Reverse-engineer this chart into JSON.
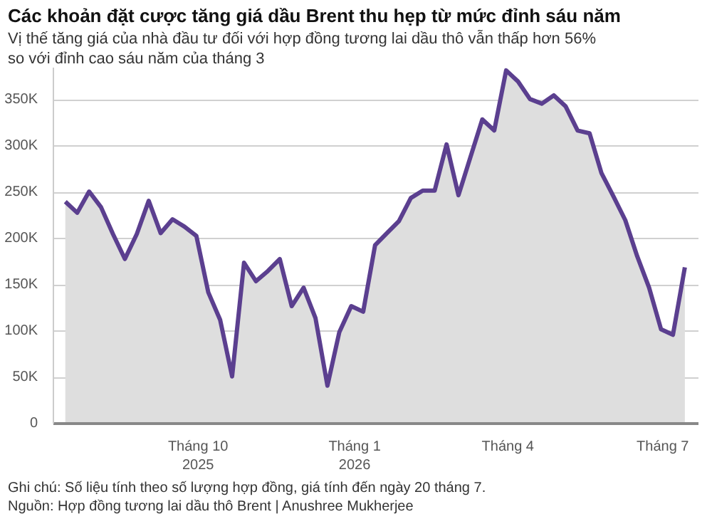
{
  "chart_data": {
    "type": "area",
    "title": "Các khoản đặt cược tăng giá dầu Brent thu hẹp từ mức đỉnh sáu năm",
    "subtitle": "Vị thế tăng giá của nhà đầu tư đối với hợp đồng tương lai dầu thô vẫn thấp hơn 56% so với đỉnh cao sáu năm của tháng 3",
    "annotations": [
      "Ghi chú: Số liệu tính theo số lượng hợp đồng, giá tính đến ngày 20 tháng 7.",
      "Nguồn: Hợp đồng tương lai dầu thô Brent | Anushree Mukherjee"
    ],
    "x": [
      "2025-07-15",
      "2025-07-22",
      "2025-07-29",
      "2025-08-05",
      "2025-08-12",
      "2025-08-19",
      "2025-08-26",
      "2025-09-02",
      "2025-09-09",
      "2025-09-16",
      "2025-09-23",
      "2025-09-30",
      "2025-10-07",
      "2025-10-14",
      "2025-10-21",
      "2025-10-28",
      "2025-11-04",
      "2025-11-11",
      "2025-11-18",
      "2025-11-25",
      "2025-12-02",
      "2025-12-09",
      "2025-12-16",
      "2025-12-23",
      "2025-12-30",
      "2026-01-06",
      "2026-01-13",
      "2026-01-20",
      "2026-01-27",
      "2026-02-03",
      "2026-02-10",
      "2026-02-17",
      "2026-02-24",
      "2026-03-03",
      "2026-03-10",
      "2026-03-17",
      "2026-03-24",
      "2026-03-31",
      "2026-04-07",
      "2026-04-14",
      "2026-04-21",
      "2026-04-28",
      "2026-05-05",
      "2026-05-12",
      "2026-05-19",
      "2026-05-26",
      "2026-06-02",
      "2026-06-09",
      "2026-06-16",
      "2026-06-23",
      "2026-06-30",
      "2026-07-07",
      "2026-07-14"
    ],
    "series": [
      {
        "color": "#5b3f8f",
        "values": [
          240000,
          228000,
          251000,
          234000,
          205000,
          178000,
          205000,
          241000,
          206000,
          221000,
          213000,
          203000,
          142000,
          112000,
          51000,
          174000,
          154000,
          165000,
          178000,
          127000,
          147000,
          114000,
          41000,
          99000,
          127000,
          121000,
          193000,
          206000,
          219000,
          244000,
          252000,
          252000,
          302000,
          247000,
          288000,
          329000,
          317000,
          382000,
          370000,
          351000,
          346000,
          355000,
          343000,
          317000,
          314000,
          271000,
          246000,
          220000,
          181000,
          147000,
          102000,
          96000,
          169000
        ]
      }
    ],
    "xlim": [
      "2025-07-08",
      "2026-07-22"
    ],
    "xticks": [
      {
        "value": "2025-10-01",
        "label": "Tháng 10\n2025"
      },
      {
        "value": "2026-01-01",
        "label": "Tháng 1\n2026"
      },
      {
        "value": "2026-04-01",
        "label": "Tháng 4"
      },
      {
        "value": "2026-07-01",
        "label": "Tháng 7"
      }
    ],
    "ylim": [
      0,
      385000
    ],
    "yticks": [
      {
        "value": 0,
        "label": "0"
      },
      {
        "value": 50000,
        "label": "50K"
      },
      {
        "value": 100000,
        "label": "100K"
      },
      {
        "value": 150000,
        "label": "150K"
      },
      {
        "value": 200000,
        "label": "200K"
      },
      {
        "value": 250000,
        "label": "250K"
      },
      {
        "value": 300000,
        "label": "300K"
      },
      {
        "value": 350000,
        "label": "350K"
      }
    ],
    "grid": "y"
  }
}
